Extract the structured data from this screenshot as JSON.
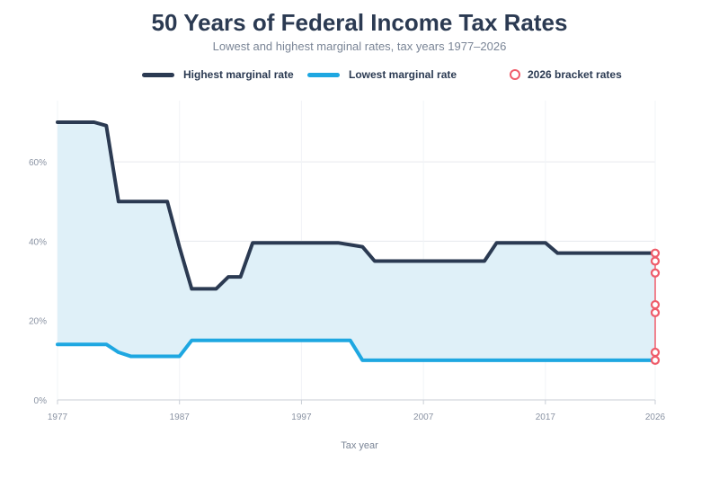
{
  "chart_data": {
    "type": "line",
    "title": "50 Years of Federal Income Tax Rates",
    "subtitle": "Lowest and highest marginal rates, tax years 1977–2026",
    "xlabel": "Tax year",
    "ylabel": "",
    "xlim": [
      1977,
      2026
    ],
    "ylim": [
      0,
      70
    ],
    "y_ticks": [
      0,
      20,
      40,
      60
    ],
    "y_tick_labels": [
      "0%",
      "20%",
      "40%",
      "60%"
    ],
    "x_ticks": [
      1977,
      1987,
      1997,
      2007,
      2017,
      2026
    ],
    "x_tick_labels": [
      "1977",
      "1987",
      "1997",
      "2007",
      "2017",
      "2026"
    ],
    "grid": true,
    "legend_placement": "top",
    "series": [
      {
        "name": "Highest marginal rate",
        "color": "#2b3a52",
        "x": [
          1977,
          1978,
          1979,
          1980,
          1981,
          1982,
          1983,
          1984,
          1985,
          1986,
          1987,
          1988,
          1989,
          1990,
          1991,
          1992,
          1993,
          1994,
          1995,
          1996,
          1997,
          1998,
          1999,
          2000,
          2001,
          2002,
          2003,
          2004,
          2005,
          2006,
          2007,
          2008,
          2009,
          2010,
          2011,
          2012,
          2013,
          2014,
          2015,
          2016,
          2017,
          2018,
          2019,
          2020,
          2021,
          2022,
          2023,
          2024,
          2025,
          2026
        ],
        "values": [
          70,
          70,
          70,
          70,
          69.13,
          50,
          50,
          50,
          50,
          50,
          38.5,
          28,
          28,
          28,
          31,
          31,
          39.6,
          39.6,
          39.6,
          39.6,
          39.6,
          39.6,
          39.6,
          39.6,
          39.1,
          38.6,
          35,
          35,
          35,
          35,
          35,
          35,
          35,
          35,
          35,
          35,
          39.6,
          39.6,
          39.6,
          39.6,
          39.6,
          37,
          37,
          37,
          37,
          37,
          37,
          37,
          37,
          37
        ]
      },
      {
        "name": "Lowest marginal rate",
        "color": "#1ea7e1",
        "x": [
          1977,
          1978,
          1979,
          1980,
          1981,
          1982,
          1983,
          1984,
          1985,
          1986,
          1987,
          1988,
          1989,
          1990,
          1991,
          1992,
          1993,
          1994,
          1995,
          1996,
          1997,
          1998,
          1999,
          2000,
          2001,
          2002,
          2003,
          2004,
          2005,
          2006,
          2007,
          2008,
          2009,
          2010,
          2011,
          2012,
          2013,
          2014,
          2015,
          2016,
          2017,
          2018,
          2019,
          2020,
          2021,
          2022,
          2023,
          2024,
          2025,
          2026
        ],
        "values": [
          14,
          14,
          14,
          14,
          14,
          12,
          11,
          11,
          11,
          11,
          11,
          15,
          15,
          15,
          15,
          15,
          15,
          15,
          15,
          15,
          15,
          15,
          15,
          15,
          15,
          10,
          10,
          10,
          10,
          10,
          10,
          10,
          10,
          10,
          10,
          10,
          10,
          10,
          10,
          10,
          10,
          10,
          10,
          10,
          10,
          10,
          10,
          10,
          10,
          10
        ]
      },
      {
        "name": "2026 bracket rates",
        "color": "#ef5c6a",
        "x": [
          2026,
          2026,
          2026,
          2026,
          2026,
          2026,
          2026
        ],
        "values": [
          10,
          12,
          22,
          24,
          32,
          35,
          37
        ]
      }
    ],
    "fill_between_color": "#dff0f8"
  }
}
